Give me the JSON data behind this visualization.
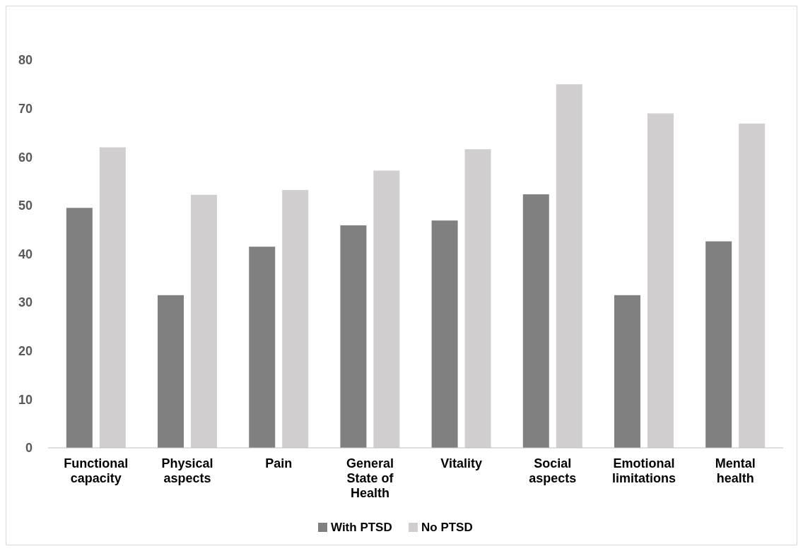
{
  "chart_data": {
    "type": "bar",
    "categories": [
      "Functional capacity",
      "Physical aspects",
      "Pain",
      "General State of Health",
      "Vitality",
      "Social aspects",
      "Emotional limitations",
      "Mental health"
    ],
    "series": [
      {
        "name": "With PTSD",
        "color": "#808080",
        "values": [
          49.5,
          31.5,
          41.5,
          45.9,
          46.9,
          52.3,
          31.5,
          42.6
        ]
      },
      {
        "name": "No PTSD",
        "color": "#d0cece",
        "values": [
          62,
          52.2,
          53.2,
          57.2,
          61.6,
          75,
          69,
          66.9
        ]
      }
    ],
    "ylim": [
      0,
      80
    ],
    "yticks": [
      0,
      10,
      20,
      30,
      40,
      50,
      60,
      70,
      80
    ],
    "grid": false,
    "legend": "bottom"
  }
}
